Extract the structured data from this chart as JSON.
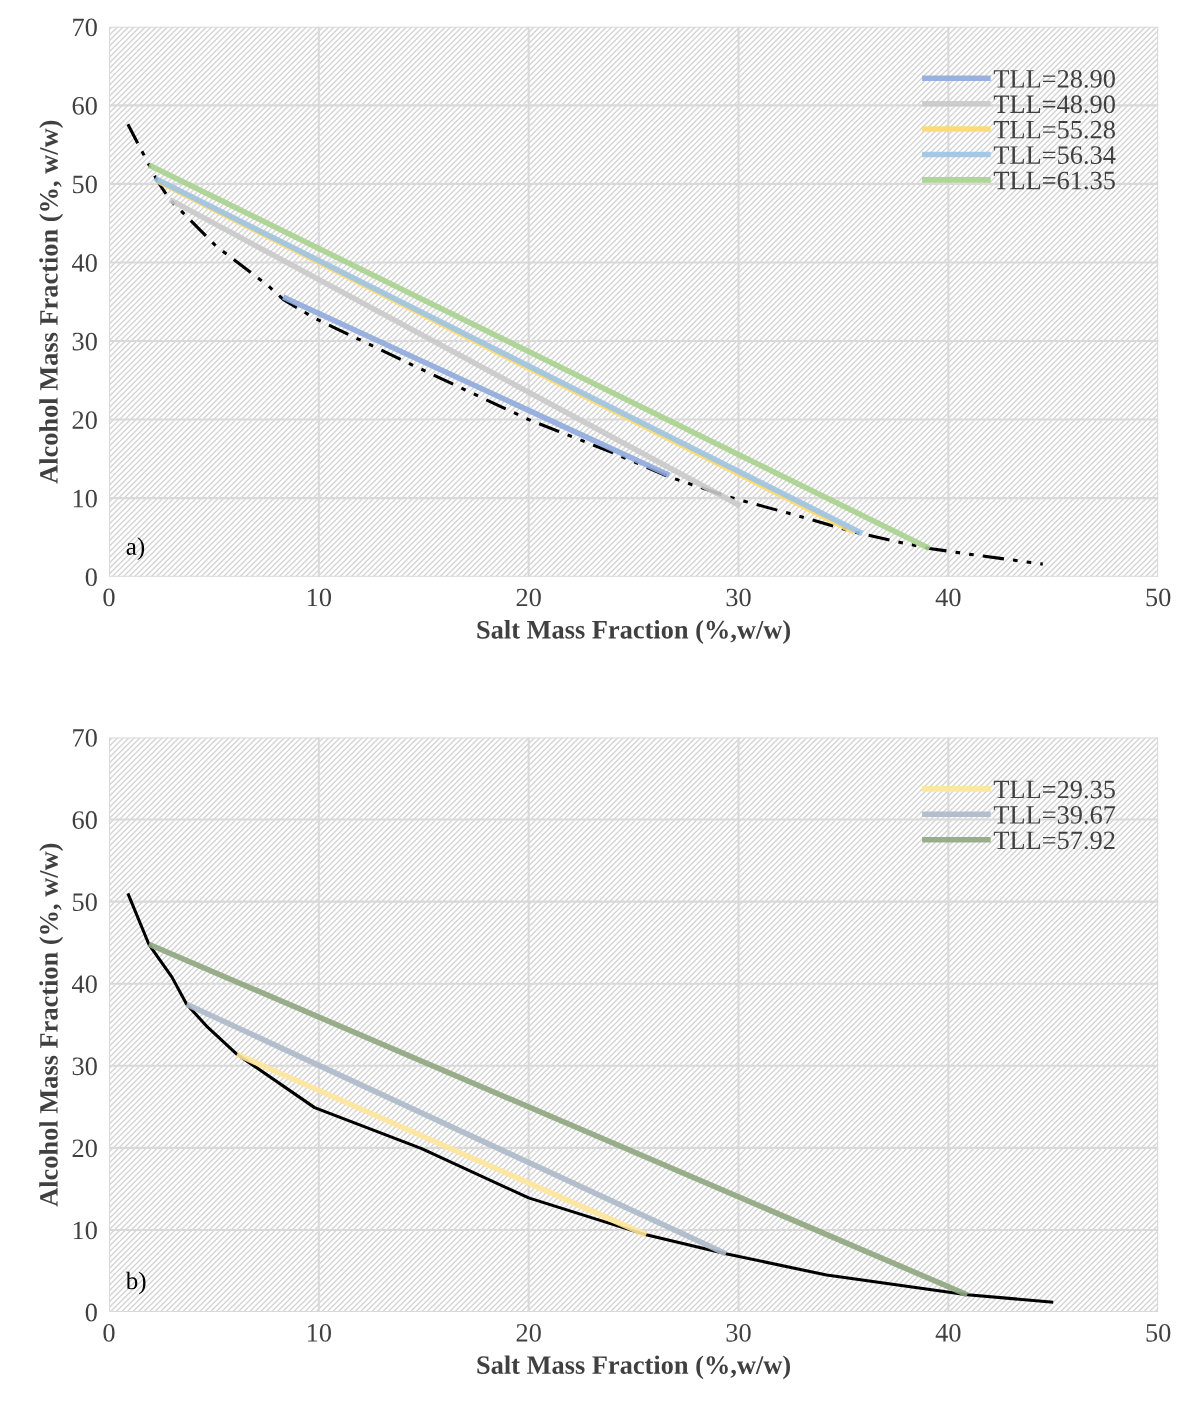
{
  "chart_data": [
    {
      "type": "line",
      "xlabel": "Salt Mass Fraction (%,w/w)",
      "ylabel": "Alcohol Mass Fraction (%, w/w)",
      "xlim": [
        0,
        50
      ],
      "ylim": [
        0,
        70
      ],
      "xticks": [
        0,
        10,
        20,
        30,
        40,
        50
      ],
      "yticks": [
        0,
        10,
        20,
        30,
        40,
        50,
        60,
        70
      ],
      "grid": true,
      "legend": "top right",
      "annotations": [
        "a)"
      ],
      "series": [
        {
          "color": "#000000",
          "line_style": "dashdotdot",
          "x": [
            0.9,
            2.3,
            2.9,
            5.1,
            7.6,
            8.3,
            9.8,
            15.6,
            20.0,
            23.9,
            26.7,
            29.6,
            32.5,
            35.5,
            38.0,
            39.1,
            40.9,
            44.5
          ],
          "values": [
            57.6,
            50.4,
            48.0,
            42.1,
            37.0,
            35.3,
            32.9,
            25.5,
            20.0,
            15.9,
            12.7,
            10.1,
            8.0,
            5.7,
            4.2,
            3.6,
            2.9,
            1.6
          ]
        },
        {
          "name": "TLL=28.90",
          "color": "#8faadc",
          "x": [
            8.3,
            26.7
          ],
          "values": [
            35.6,
            12.9
          ]
        },
        {
          "name": "TLL=48.90",
          "color": "#c9c9c9",
          "x": [
            2.9,
            30.1
          ],
          "values": [
            48.0,
            9.0
          ]
        },
        {
          "name": "TLL=55.28",
          "color": "#ffd966",
          "x": [
            2.3,
            35.5
          ],
          "values": [
            50.4,
            5.7
          ]
        },
        {
          "name": "TLL=56.34",
          "color": "#9dc3e6",
          "x": [
            2.2,
            35.9
          ],
          "values": [
            50.7,
            5.5
          ]
        },
        {
          "name": "TLL=61.35",
          "color": "#a9d18e",
          "x": [
            1.9,
            39.1
          ],
          "values": [
            52.4,
            3.6
          ]
        }
      ]
    },
    {
      "type": "line",
      "xlabel": "Salt Mass Fraction (%,w/w)",
      "ylabel": "Alcohol Mass Fraction (%, w/w)",
      "xlim": [
        0,
        50
      ],
      "ylim": [
        0,
        70
      ],
      "xticks": [
        0,
        10,
        20,
        30,
        40,
        50
      ],
      "yticks": [
        0,
        10,
        20,
        30,
        40,
        50,
        60,
        70
      ],
      "grid": true,
      "legend": "top right",
      "annotations": [
        "b)"
      ],
      "series": [
        {
          "color": "#000000",
          "line_style": "solid",
          "x": [
            0.9,
            1.9,
            3.0,
            3.7,
            4.7,
            6.1,
            9.8,
            14.9,
            20.0,
            25.6,
            29.4,
            34.2,
            40.9,
            45.0
          ],
          "values": [
            51.0,
            44.8,
            40.8,
            37.5,
            34.7,
            31.4,
            24.9,
            19.9,
            13.9,
            9.4,
            7.1,
            4.5,
            2.1,
            1.2
          ]
        },
        {
          "name": "TLL=29.35",
          "color": "#ffe699",
          "x": [
            6.1,
            25.6
          ],
          "values": [
            31.4,
            9.4
          ]
        },
        {
          "name": "TLL=39.67",
          "color": "#adb9ca",
          "x": [
            3.7,
            29.4
          ],
          "values": [
            37.5,
            7.1
          ]
        },
        {
          "name": "TLL=57.92",
          "color": "#8ea67e",
          "x": [
            1.9,
            40.9
          ],
          "values": [
            44.8,
            2.1
          ]
        }
      ]
    }
  ]
}
